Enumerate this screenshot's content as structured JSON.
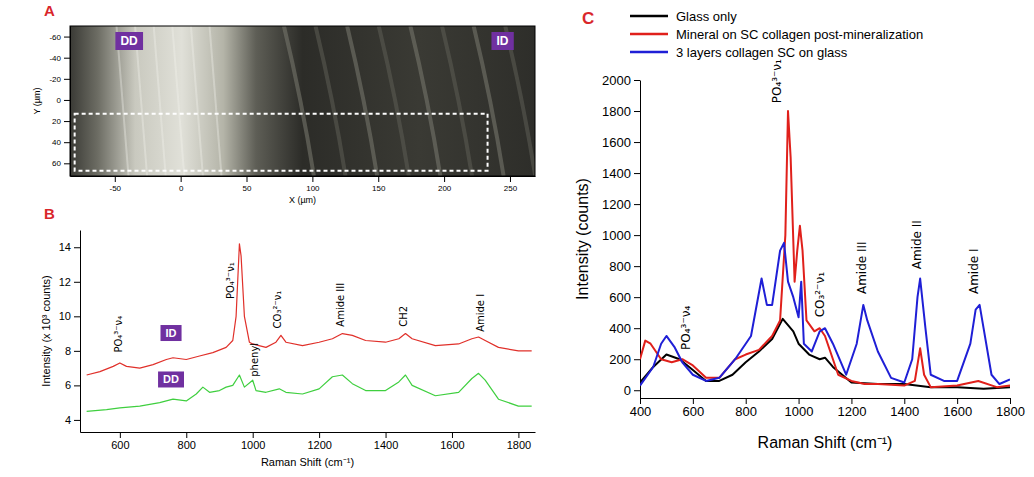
{
  "chart_data": [
    {
      "panel": "A",
      "type": "image",
      "xlabel": "X (µm)",
      "ylabel": "Y (µm)",
      "xlim": [
        -84,
        269
      ],
      "ylim": [
        -70,
        72
      ],
      "xticks": [
        -50,
        0,
        50,
        100,
        150,
        200,
        250
      ],
      "yticks": [
        -60,
        -40,
        -20,
        0,
        20,
        40,
        60
      ],
      "labels": [
        "DD",
        "ID"
      ]
    },
    {
      "panel": "B",
      "type": "line",
      "xlabel": "Raman Shift (cm⁻¹)",
      "ylabel": "Intensity (x 10³ counts)",
      "xlim": [
        480,
        1850
      ],
      "ylim": [
        3.3,
        15
      ],
      "xticks": [
        600,
        800,
        1000,
        1200,
        1400,
        1600,
        1800
      ],
      "yticks": [
        4,
        6,
        8,
        10,
        12,
        14
      ],
      "series": [
        {
          "name": "ID",
          "color": "#e0302a",
          "x": [
            500,
            540,
            580,
            600,
            620,
            660,
            700,
            740,
            760,
            800,
            840,
            880,
            920,
            940,
            950,
            960,
            965,
            975,
            990,
            1000,
            1040,
            1070,
            1085,
            1100,
            1150,
            1200,
            1240,
            1270,
            1300,
            1340,
            1400,
            1440,
            1460,
            1480,
            1550,
            1620,
            1660,
            1680,
            1700,
            1740,
            1800,
            1840
          ],
          "values": [
            6.6,
            6.8,
            7.1,
            7.3,
            7.1,
            7.0,
            7.2,
            7.5,
            7.6,
            7.5,
            7.7,
            7.9,
            8.2,
            8.6,
            10.0,
            14.2,
            13.5,
            10.0,
            8.5,
            8.4,
            8.2,
            8.5,
            8.9,
            8.5,
            8.3,
            8.5,
            8.7,
            9.0,
            8.9,
            8.6,
            8.5,
            8.7,
            9.0,
            8.7,
            8.3,
            8.4,
            8.7,
            8.8,
            8.6,
            8.2,
            8.0,
            8.0
          ]
        },
        {
          "name": "DD",
          "color": "#3fcf3f",
          "x": [
            500,
            560,
            600,
            660,
            720,
            760,
            800,
            830,
            850,
            870,
            900,
            920,
            940,
            960,
            975,
            1000,
            1010,
            1040,
            1080,
            1100,
            1150,
            1200,
            1240,
            1270,
            1300,
            1340,
            1400,
            1440,
            1460,
            1480,
            1550,
            1620,
            1660,
            1680,
            1700,
            1740,
            1800,
            1840
          ],
          "values": [
            4.5,
            4.6,
            4.7,
            4.8,
            5.0,
            5.2,
            5.1,
            5.5,
            5.9,
            5.6,
            5.7,
            5.9,
            6.0,
            6.6,
            5.9,
            6.3,
            5.7,
            5.6,
            5.8,
            5.6,
            5.5,
            5.8,
            6.5,
            6.6,
            6.1,
            5.7,
            5.7,
            6.2,
            6.6,
            6.0,
            5.4,
            5.6,
            6.4,
            6.7,
            6.3,
            5.2,
            4.8,
            4.8
          ]
        }
      ],
      "annotations": [
        {
          "text": "PO₄³⁻ν₄",
          "x": 605,
          "y": 7.9
        },
        {
          "text": "PO₄³⁻ν₁",
          "x": 945,
          "y": 11.0
        },
        {
          "text": "phenyl",
          "x": 1015,
          "y": 6.5
        },
        {
          "text": "CO₃²⁻ν₁",
          "x": 1085,
          "y": 9.3
        },
        {
          "text": "Amide III",
          "x": 1275,
          "y": 9.4
        },
        {
          "text": "CH2",
          "x": 1465,
          "y": 9.4
        },
        {
          "text": "Amide I",
          "x": 1695,
          "y": 9.1
        }
      ]
    },
    {
      "panel": "C",
      "type": "line",
      "xlabel": "Raman Shift (cm⁻¹)",
      "ylabel": "Intensity (counts)",
      "xlim": [
        400,
        1800
      ],
      "ylim": [
        -50,
        2000
      ],
      "xticks": [
        400,
        600,
        800,
        1000,
        1200,
        1400,
        1600,
        1800
      ],
      "yticks": [
        0,
        200,
        400,
        600,
        800,
        1000,
        1200,
        1400,
        1600,
        1800,
        2000
      ],
      "legend": "top",
      "series": [
        {
          "name": "Glass only",
          "color": "#000000",
          "x": [
            400,
            450,
            500,
            550,
            600,
            650,
            700,
            750,
            800,
            850,
            900,
            940,
            980,
            1000,
            1040,
            1080,
            1100,
            1130,
            1200,
            1300,
            1400,
            1500,
            1600,
            1700,
            1800
          ],
          "values": [
            50,
            150,
            230,
            200,
            130,
            60,
            60,
            100,
            180,
            250,
            330,
            460,
            380,
            300,
            230,
            200,
            210,
            150,
            50,
            40,
            40,
            20,
            20,
            10,
            20
          ]
        },
        {
          "name": "Mineral on SC collagen post-mineralization",
          "color": "#e0201b",
          "x": [
            400,
            420,
            440,
            480,
            520,
            560,
            600,
            650,
            700,
            760,
            800,
            850,
            900,
            930,
            950,
            960,
            970,
            985,
            995,
            1005,
            1015,
            1030,
            1060,
            1080,
            1100,
            1150,
            1200,
            1250,
            1300,
            1400,
            1440,
            1460,
            1475,
            1500,
            1600,
            1680,
            1750,
            1800
          ],
          "values": [
            200,
            320,
            300,
            200,
            180,
            200,
            160,
            80,
            80,
            200,
            230,
            260,
            350,
            450,
            1000,
            1800,
            1500,
            700,
            900,
            1060,
            900,
            450,
            380,
            400,
            350,
            100,
            60,
            40,
            40,
            30,
            60,
            270,
            100,
            20,
            30,
            60,
            20,
            30
          ]
        },
        {
          "name": "3 layers collagen SC on glass",
          "color": "#1f1fd6",
          "x": [
            400,
            450,
            480,
            500,
            530,
            560,
            600,
            650,
            700,
            760,
            820,
            860,
            880,
            900,
            930,
            945,
            960,
            980,
            1000,
            1010,
            1020,
            1050,
            1080,
            1100,
            1130,
            1180,
            1220,
            1245,
            1260,
            1300,
            1350,
            1400,
            1430,
            1450,
            1460,
            1480,
            1500,
            1550,
            1600,
            1650,
            1670,
            1685,
            1700,
            1730,
            1760,
            1800
          ],
          "values": [
            30,
            150,
            300,
            350,
            280,
            180,
            100,
            60,
            80,
            200,
            350,
            720,
            550,
            550,
            900,
            950,
            700,
            600,
            470,
            700,
            300,
            250,
            380,
            400,
            300,
            100,
            300,
            550,
            450,
            250,
            80,
            50,
            200,
            600,
            720,
            400,
            100,
            60,
            60,
            300,
            520,
            550,
            400,
            100,
            40,
            70
          ]
        }
      ],
      "annotations": [
        {
          "text": "PO₄³⁻ν₄",
          "x": 590,
          "y": 260
        },
        {
          "text": "PO₄³⁻ν₁",
          "x": 935,
          "y": 1850
        },
        {
          "text": "CO₃²⁻ν₁",
          "x": 1095,
          "y": 470
        },
        {
          "text": "Amide III",
          "x": 1255,
          "y": 620
        },
        {
          "text": "Amide II",
          "x": 1465,
          "y": 780
        },
        {
          "text": "Amide I",
          "x": 1680,
          "y": 620
        }
      ]
    }
  ]
}
